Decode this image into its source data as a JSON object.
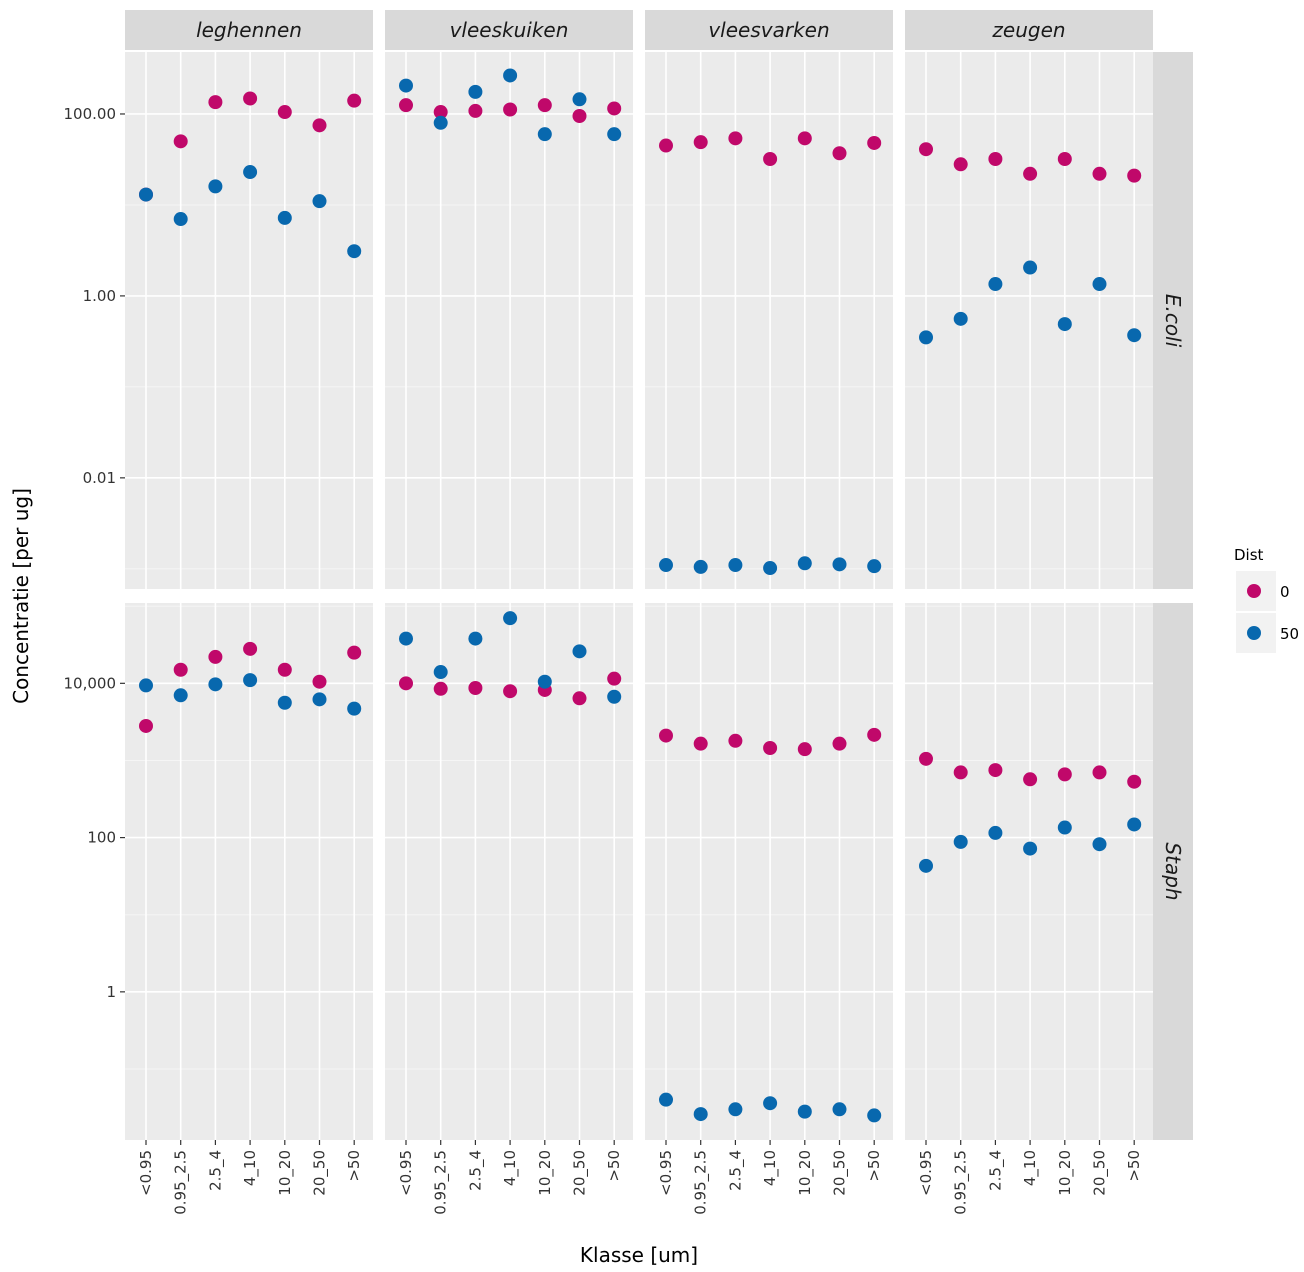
{
  "chart_data": {
    "type": "scatter",
    "facet_columns": [
      "leghennen",
      "vleeskuiken",
      "vleesvarken",
      "zeugen"
    ],
    "facet_rows": [
      "E.coli",
      "Staph"
    ],
    "xlabel": "Klasse [um]",
    "ylabel": "Concentratie [per ug]",
    "categories": [
      "<0.95",
      "0.95_2.5",
      "2.5_4",
      "4_10",
      "10_20",
      "20_50",
      ">50"
    ],
    "y_scale": "log10",
    "y_axis_per_row": [
      {
        "row": "E.coli",
        "ticks": [
          {
            "value": 0.01,
            "label": "0.01"
          },
          {
            "value": 1,
            "label": "1.00"
          },
          {
            "value": 100,
            "label": "100.00"
          }
        ],
        "ylim": [
          0.0006,
          480
        ]
      },
      {
        "row": "Staph",
        "ticks": [
          {
            "value": 1,
            "label": "1"
          },
          {
            "value": 100,
            "label": "100"
          },
          {
            "value": 10000,
            "label": "10,000"
          }
        ],
        "ylim": [
          0.012,
          110000
        ]
      }
    ],
    "legend": {
      "title": "Dist",
      "position": "right",
      "entries": [
        {
          "label": "0",
          "color": "#C0086A"
        },
        {
          "label": "50",
          "color": "#0868AE"
        }
      ]
    },
    "grid": true,
    "panels": [
      {
        "row": "E.coli",
        "col": "leghennen",
        "series": [
          {
            "dist": "0",
            "values": [
              13,
              50,
              135,
              148,
              105,
              75,
              140
            ]
          },
          {
            "dist": "50",
            "values": [
              13,
              7,
              16,
              23,
              7.2,
              11,
              3.1
            ]
          }
        ]
      },
      {
        "row": "E.coli",
        "col": "vleeskuiken",
        "series": [
          {
            "dist": "0",
            "values": [
              125,
              105,
              108,
              112,
              125,
              95,
              115
            ]
          },
          {
            "dist": "50",
            "values": [
              205,
              80,
              175,
              265,
              60,
              145,
              60
            ]
          }
        ]
      },
      {
        "row": "E.coli",
        "col": "vleesvarken",
        "series": [
          {
            "dist": "0",
            "values": [
              45,
              49,
              54,
              32,
              54,
              37,
              48
            ]
          },
          {
            "dist": "50",
            "values": [
              0.0011,
              0.00105,
              0.0011,
              0.00102,
              0.00115,
              0.00112,
              0.00107
            ]
          }
        ]
      },
      {
        "row": "E.coli",
        "col": "zeugen",
        "series": [
          {
            "dist": "0",
            "values": [
              41,
              28,
              32,
              22,
              32,
              22,
              21
            ]
          },
          {
            "dist": "50",
            "values": [
              0.35,
              0.56,
              1.35,
              2.05,
              0.49,
              1.35,
              0.37
            ]
          }
        ]
      },
      {
        "row": "Staph",
        "col": "leghennen",
        "series": [
          {
            "dist": "0",
            "values": [
              2800,
              15000,
              22000,
              28000,
              15000,
              10500,
              25000
            ]
          },
          {
            "dist": "50",
            "values": [
              9400,
              7000,
              9700,
              11000,
              5600,
              6200,
              4700
            ]
          }
        ]
      },
      {
        "row": "Staph",
        "col": "vleeskuiken",
        "series": [
          {
            "dist": "0",
            "values": [
              10000,
              8500,
              8700,
              7900,
              8200,
              6400,
              11500
            ]
          },
          {
            "dist": "50",
            "values": [
              38000,
              14000,
              38000,
              70000,
              10500,
              26000,
              6700
            ]
          }
        ]
      },
      {
        "row": "Staph",
        "col": "vleesvarken",
        "series": [
          {
            "dist": "0",
            "values": [
              2100,
              1650,
              1800,
              1450,
              1400,
              1650,
              2150
            ]
          },
          {
            "dist": "50",
            "values": [
              0.04,
              0.026,
              0.03,
              0.036,
              0.028,
              0.03,
              0.025
            ]
          }
        ]
      },
      {
        "row": "Staph",
        "col": "zeugen",
        "series": [
          {
            "dist": "0",
            "values": [
              1050,
              700,
              750,
              570,
              660,
              700,
              530
            ]
          },
          {
            "dist": "50",
            "values": [
              43,
              88,
              115,
              72,
              135,
              82,
              148
            ]
          }
        ]
      }
    ]
  }
}
